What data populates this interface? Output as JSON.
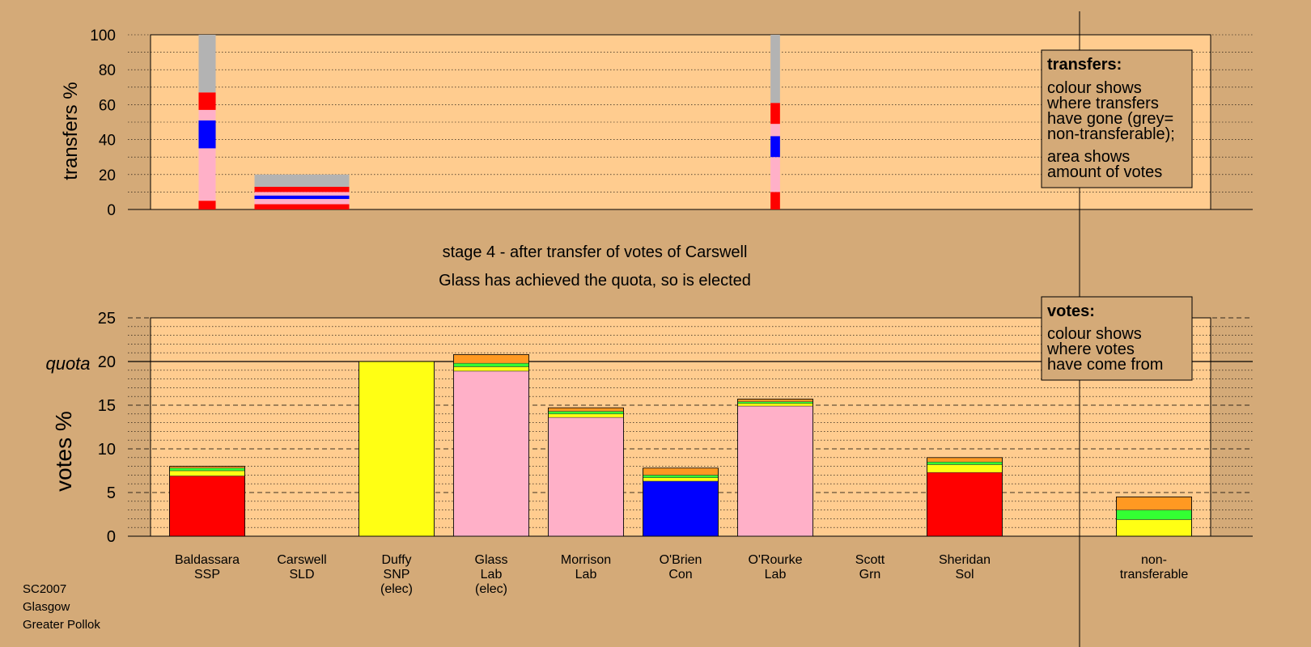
{
  "caption": {
    "line1": "stage 4 - after transfer of votes of Carswell",
    "line2": "Glass has achieved the quota, so is elected"
  },
  "footer": {
    "lines": [
      "SC2007",
      "Glasgow",
      "Greater Pollok"
    ]
  },
  "legend_transfers": {
    "title": "transfers:",
    "body1": [
      "colour shows",
      "where transfers",
      "have gone (grey=",
      "non-transferable);"
    ],
    "body2": [
      "area shows",
      "amount of votes"
    ]
  },
  "legend_votes": {
    "title": "votes:",
    "body": [
      "colour shows",
      "where votes",
      "have come from"
    ]
  },
  "colors": {
    "background": "#d4aa78",
    "plot": "#ffcc8f",
    "SSP": "#ff0000",
    "Lab": "#ffb0c8",
    "Con": "#0000ff",
    "SNP": "#ffff14",
    "Grn": "#33ff33",
    "SLD": "#ff9922",
    "Sol": "#ff0000",
    "other": "#ff0000",
    "nontransferable": "#b3b3b3"
  },
  "chart_data": [
    {
      "type": "bar",
      "stacked": true,
      "ylabel": "transfers %",
      "ylim": [
        0,
        100
      ],
      "yticks": [
        0,
        20,
        40,
        60,
        80,
        100
      ],
      "grid": true,
      "bars": [
        {
          "position": 1.5,
          "width": 0.18,
          "segments": [
            {
              "color": "other",
              "value": 5
            },
            {
              "color": "Lab",
              "value": 30
            },
            {
              "color": "Con",
              "value": 16
            },
            {
              "color": "Lab",
              "value": 6
            },
            {
              "color": "SSP",
              "value": 10
            },
            {
              "color": "nontransferable",
              "value": 33
            }
          ]
        },
        {
          "position": 2.5,
          "width": 1.0,
          "segments": [
            {
              "color": "other",
              "value": 3
            },
            {
              "color": "Lab",
              "value": 3
            },
            {
              "color": "Con",
              "value": 2
            },
            {
              "color": "Lab",
              "value": 2
            },
            {
              "color": "SSP",
              "value": 3
            },
            {
              "color": "nontransferable",
              "value": 7
            }
          ]
        },
        {
          "position": 7.5,
          "width": 0.1,
          "segments": [
            {
              "color": "other",
              "value": 10
            },
            {
              "color": "Lab",
              "value": 20
            },
            {
              "color": "Con",
              "value": 12
            },
            {
              "color": "Lab",
              "value": 7
            },
            {
              "color": "SSP",
              "value": 12
            },
            {
              "color": "nontransferable",
              "value": 39
            }
          ]
        }
      ]
    },
    {
      "type": "bar",
      "stacked": true,
      "ylabel": "votes %",
      "ylim": [
        0,
        25
      ],
      "yticks": [
        0,
        5,
        10,
        15,
        20,
        25
      ],
      "quota": 20,
      "quota_label": "quota",
      "grid": true,
      "candidates": [
        {
          "name": "Baldassara",
          "party": "SSP",
          "note": "",
          "segments": [
            {
              "color": "SSP",
              "value": 6.9
            },
            {
              "color": "SNP",
              "value": 0.6
            },
            {
              "color": "Grn",
              "value": 0.3
            },
            {
              "color": "SLD",
              "value": 0.2
            }
          ]
        },
        {
          "name": "Carswell",
          "party": "SLD",
          "note": "",
          "segments": []
        },
        {
          "name": "Duffy",
          "party": "SNP",
          "note": "(elec)",
          "segments": [
            {
              "color": "SNP",
              "value": 20.0
            }
          ]
        },
        {
          "name": "Glass",
          "party": "Lab",
          "note": "(elec)",
          "segments": [
            {
              "color": "Lab",
              "value": 18.9
            },
            {
              "color": "SNP",
              "value": 0.5
            },
            {
              "color": "Grn",
              "value": 0.4
            },
            {
              "color": "SLD",
              "value": 1.0
            }
          ]
        },
        {
          "name": "Morrison",
          "party": "Lab",
          "note": "",
          "segments": [
            {
              "color": "Lab",
              "value": 13.6
            },
            {
              "color": "SNP",
              "value": 0.4
            },
            {
              "color": "Grn",
              "value": 0.3
            },
            {
              "color": "SLD",
              "value": 0.4
            }
          ]
        },
        {
          "name": "O'Brien",
          "party": "Con",
          "note": "",
          "segments": [
            {
              "color": "Con",
              "value": 6.3
            },
            {
              "color": "SNP",
              "value": 0.4
            },
            {
              "color": "Grn",
              "value": 0.3
            },
            {
              "color": "SLD",
              "value": 0.8
            }
          ]
        },
        {
          "name": "O'Rourke",
          "party": "Lab",
          "note": "",
          "segments": [
            {
              "color": "Lab",
              "value": 14.9
            },
            {
              "color": "SNP",
              "value": 0.3
            },
            {
              "color": "Grn",
              "value": 0.2
            },
            {
              "color": "SLD",
              "value": 0.3
            }
          ]
        },
        {
          "name": "Scott",
          "party": "Grn",
          "note": "",
          "segments": []
        },
        {
          "name": "Sheridan",
          "party": "Sol",
          "note": "",
          "segments": [
            {
              "color": "Sol",
              "value": 7.3
            },
            {
              "color": "SNP",
              "value": 0.9
            },
            {
              "color": "Grn",
              "value": 0.3
            },
            {
              "color": "SLD",
              "value": 0.5
            }
          ]
        }
      ],
      "nontransferable": {
        "label1": "non-",
        "label2": "transferable",
        "segments": [
          {
            "color": "SNP",
            "value": 1.9
          },
          {
            "color": "Grn",
            "value": 1.1
          },
          {
            "color": "SLD",
            "value": 1.5
          }
        ]
      }
    }
  ]
}
